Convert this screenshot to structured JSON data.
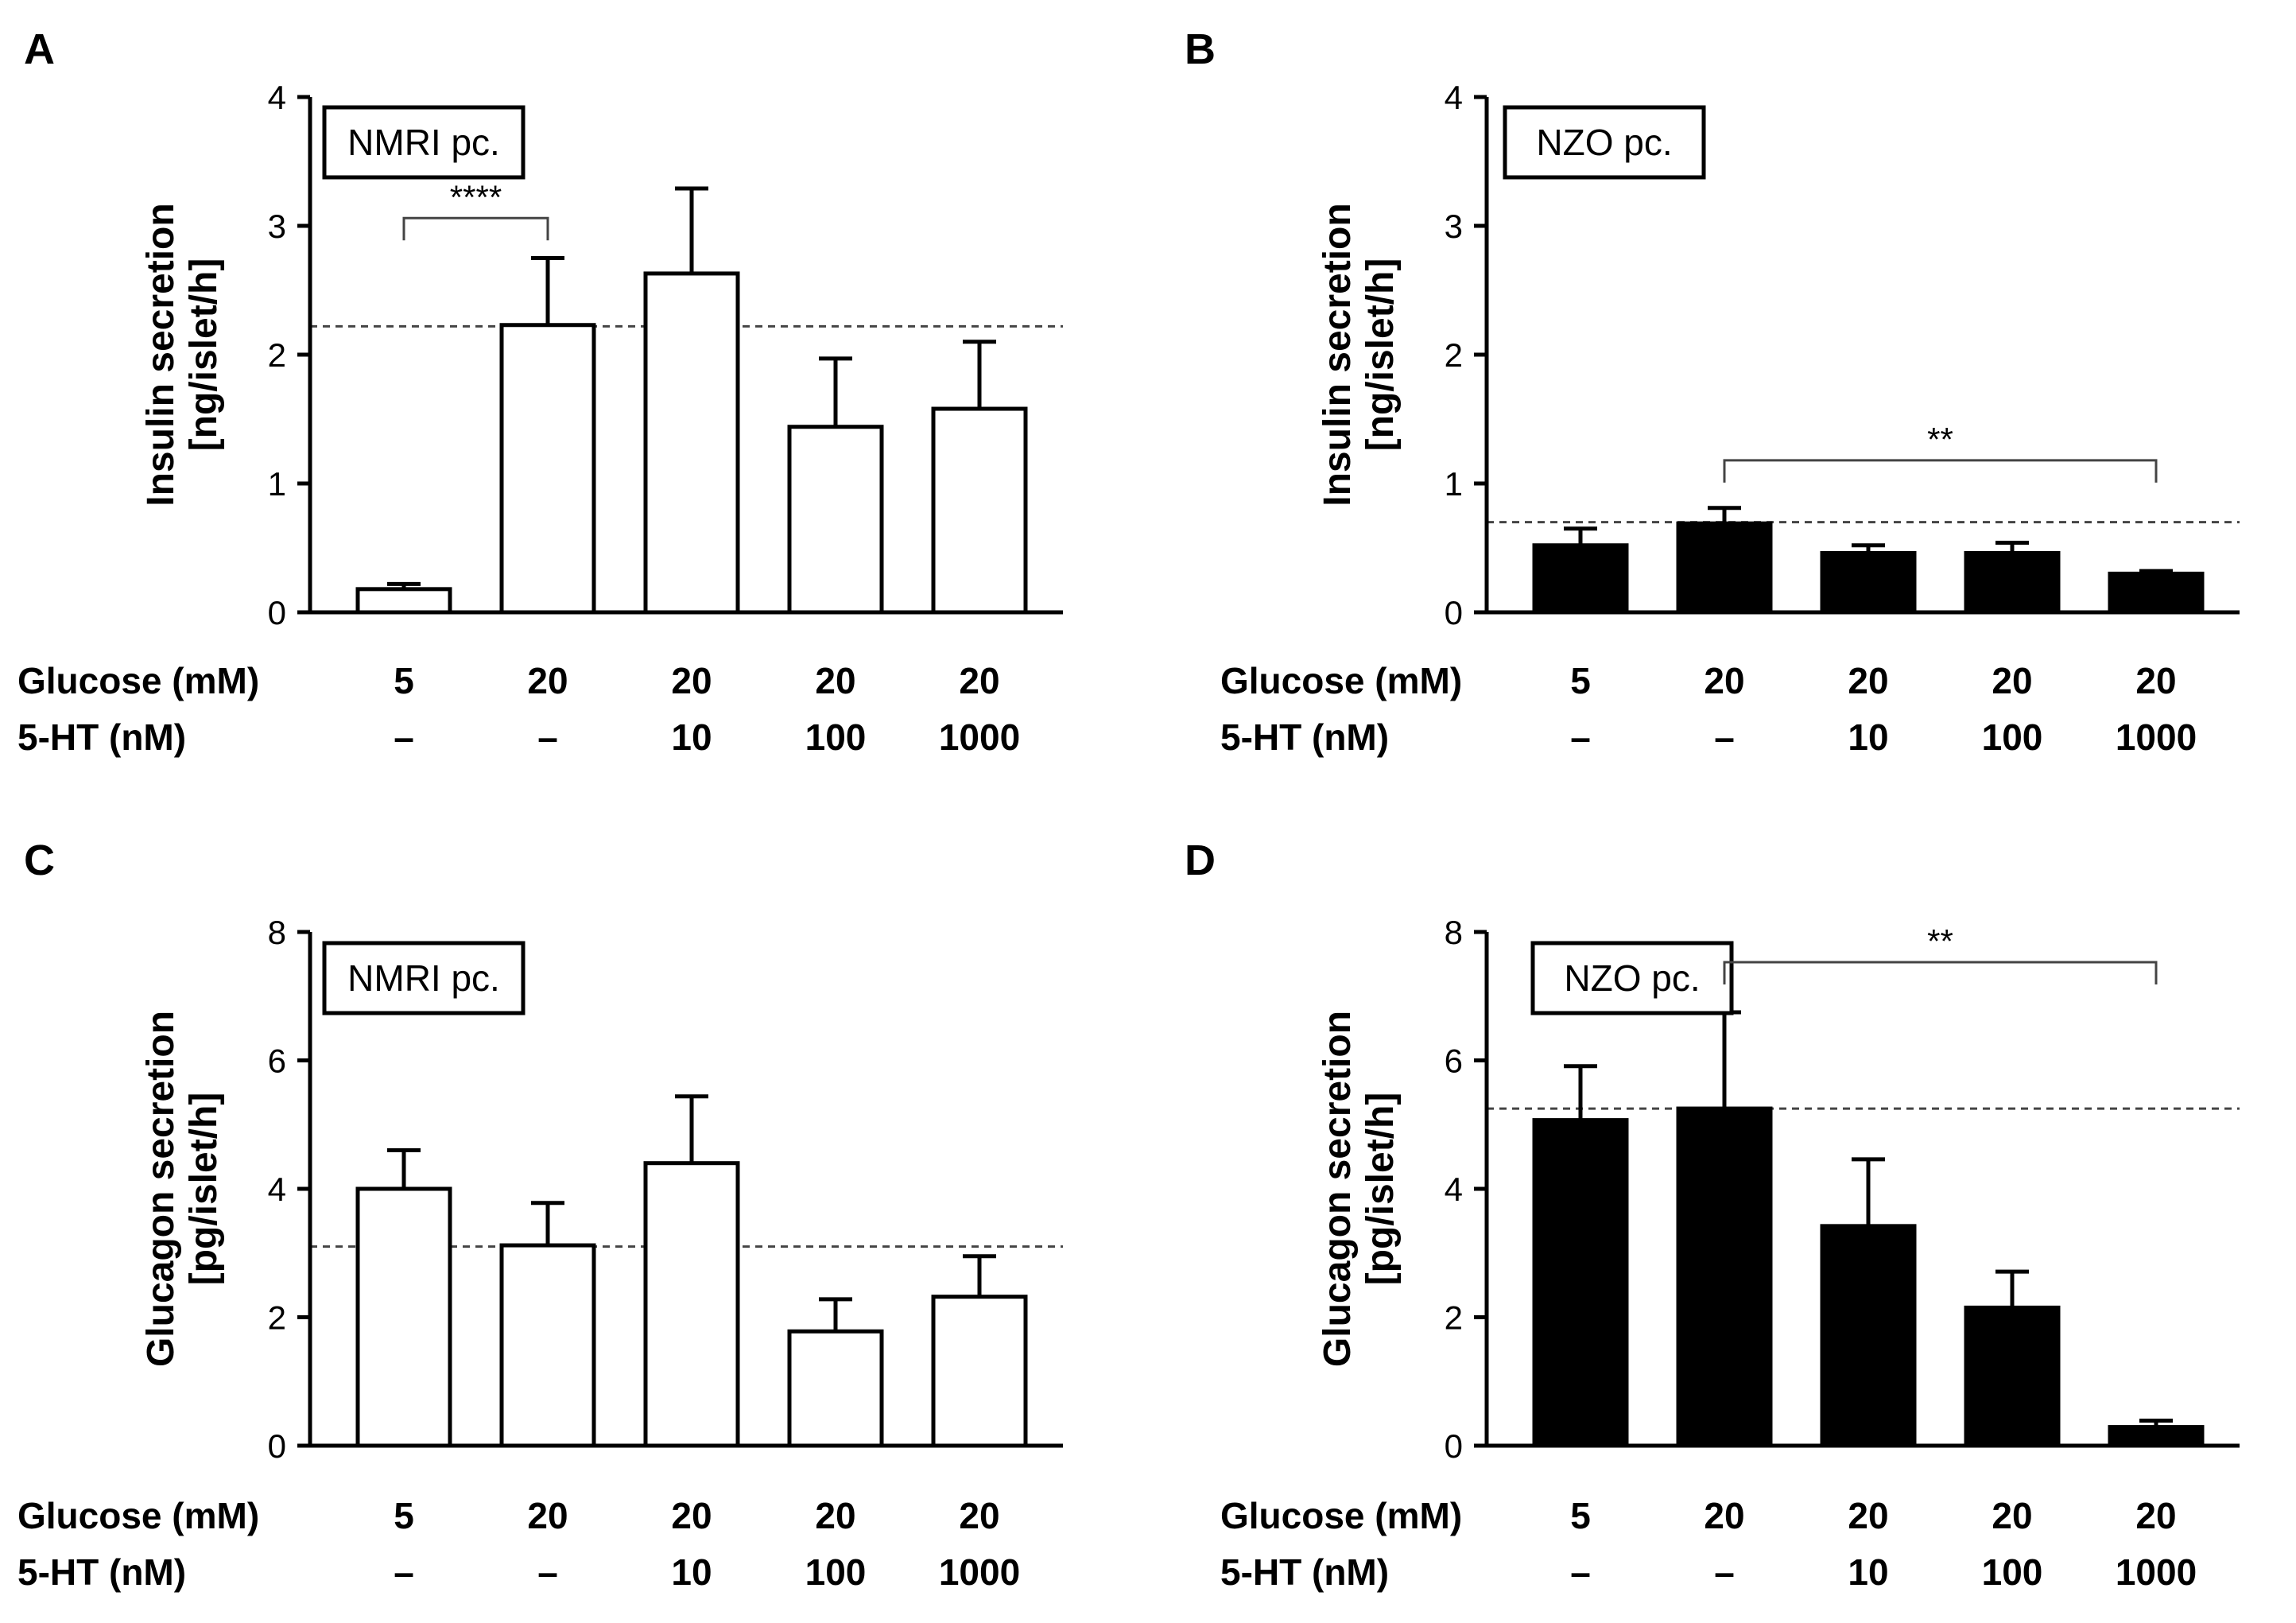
{
  "chart_data": [
    {
      "panel": "A",
      "type": "bar",
      "style": "open",
      "label_box": "NMRI pc.",
      "ylabel": [
        "Insulin secretion",
        "[ng/islet/h]"
      ],
      "ylim": [
        0,
        4
      ],
      "yticks": [
        0,
        1,
        2,
        3,
        4
      ],
      "row_labels": [
        "Glucose (mM)",
        "5-HT (nM)"
      ],
      "glucose": [
        "5",
        "20",
        "20",
        "20",
        "20"
      ],
      "serotonin": [
        "–",
        "–",
        "10",
        "100",
        "1000"
      ],
      "values": [
        0.18,
        2.23,
        2.63,
        1.44,
        1.58
      ],
      "errors": [
        0.04,
        0.52,
        0.66,
        0.53,
        0.52
      ],
      "reference_line": 2.22,
      "significance": [
        {
          "from": 0,
          "to": 1,
          "y": 3.06,
          "label": "****"
        }
      ]
    },
    {
      "panel": "B",
      "type": "bar",
      "style": "filled",
      "label_box": "NZO pc.",
      "ylabel": [
        "Insulin secretion",
        "[ng/islet/h]"
      ],
      "ylim": [
        0,
        4
      ],
      "yticks": [
        0,
        1,
        2,
        3,
        4
      ],
      "row_labels": [
        "Glucose (mM)",
        "5-HT (nM)"
      ],
      "glucose": [
        "5",
        "20",
        "20",
        "20",
        "20"
      ],
      "serotonin": [
        "–",
        "–",
        "10",
        "100",
        "1000"
      ],
      "values": [
        0.52,
        0.69,
        0.46,
        0.46,
        0.3
      ],
      "errors": [
        0.13,
        0.12,
        0.06,
        0.08,
        0.02
      ],
      "reference_line": 0.7,
      "significance": [
        {
          "from": 1,
          "to": 4,
          "y": 1.18,
          "label": "**"
        }
      ]
    },
    {
      "panel": "C",
      "type": "bar",
      "style": "open",
      "label_box": "NMRI pc.",
      "ylabel": [
        "Glucagon secretion",
        "[pg/islet/h]"
      ],
      "ylim": [
        0,
        8
      ],
      "yticks": [
        0,
        2,
        4,
        6,
        8
      ],
      "row_labels": [
        "Glucose (mM)",
        "5-HT (nM)"
      ],
      "glucose": [
        "5",
        "20",
        "20",
        "20",
        "20"
      ],
      "serotonin": [
        "–",
        "–",
        "10",
        "100",
        "1000"
      ],
      "values": [
        4.0,
        3.12,
        4.4,
        1.78,
        2.32
      ],
      "errors": [
        0.6,
        0.66,
        1.04,
        0.5,
        0.63
      ],
      "reference_line": 3.1,
      "significance": []
    },
    {
      "panel": "D",
      "type": "bar",
      "style": "filled",
      "label_box": "NZO pc.",
      "ylabel": [
        "Glucagon secretion",
        "[pg/islet/h]"
      ],
      "ylim": [
        0,
        8
      ],
      "yticks": [
        0,
        2,
        4,
        6,
        8
      ],
      "row_labels": [
        "Glucose (mM)",
        "5-HT (nM)"
      ],
      "glucose": [
        "5",
        "20",
        "20",
        "20",
        "20"
      ],
      "serotonin": [
        "–",
        "–",
        "10",
        "100",
        "1000"
      ],
      "values": [
        5.07,
        5.25,
        3.42,
        2.15,
        0.29
      ],
      "errors": [
        0.84,
        1.5,
        1.04,
        0.56,
        0.1
      ],
      "reference_line": 5.25,
      "significance": [
        {
          "from": 1,
          "to": 4,
          "y": 7.53,
          "label": "**"
        }
      ]
    }
  ]
}
